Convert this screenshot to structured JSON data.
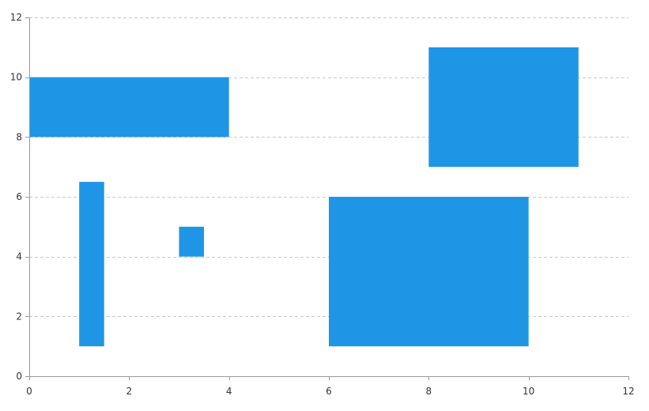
{
  "chart_data": {
    "type": "rectangle",
    "title": "",
    "xlabel": "",
    "ylabel": "",
    "xlim": [
      0,
      12
    ],
    "ylim": [
      0,
      12
    ],
    "x_ticks": [
      0,
      2,
      4,
      6,
      8,
      10,
      12
    ],
    "y_ticks": [
      0,
      2,
      4,
      6,
      8,
      10,
      12
    ],
    "x_tick_labels": [
      "0",
      "2",
      "4",
      "6",
      "8",
      "10",
      "12"
    ],
    "y_tick_labels": [
      "0",
      "2",
      "4",
      "6",
      "8",
      "10",
      "12"
    ],
    "grid": "horizontal-dashed",
    "color": "#1e96e5",
    "rectangles": [
      {
        "x0": 0,
        "x1": 4,
        "y0": 8,
        "y1": 10
      },
      {
        "x0": 8,
        "x1": 11,
        "y0": 7,
        "y1": 11
      },
      {
        "x0": 1,
        "x1": 1.5,
        "y0": 1,
        "y1": 6.5
      },
      {
        "x0": 3,
        "x1": 3.5,
        "y0": 4,
        "y1": 5
      },
      {
        "x0": 6,
        "x1": 10,
        "y0": 1,
        "y1": 6
      }
    ]
  }
}
